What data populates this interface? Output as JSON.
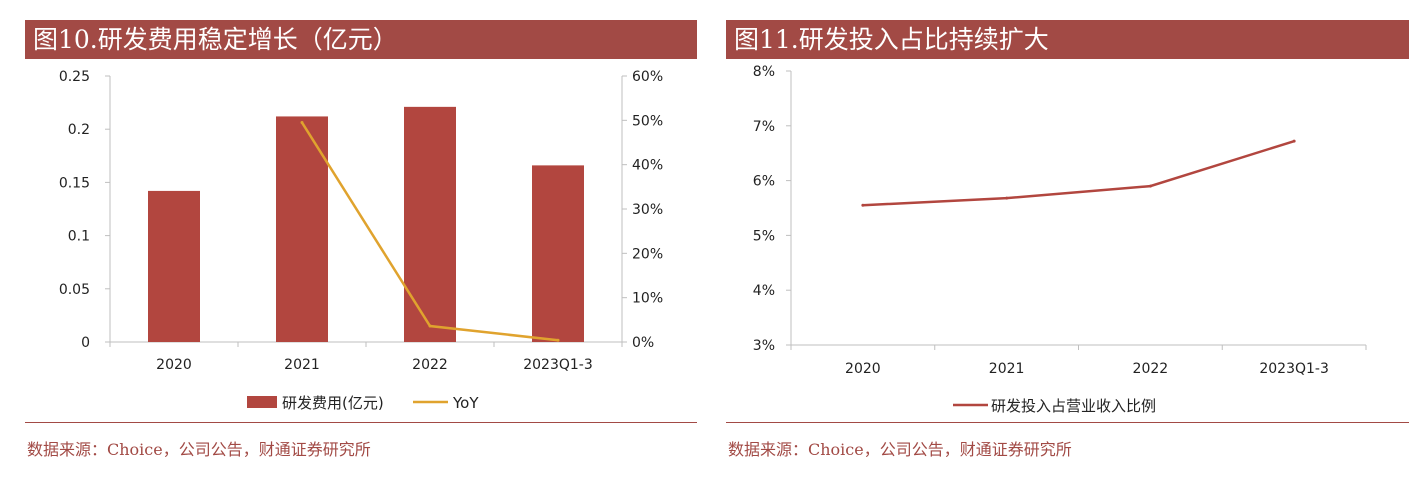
{
  "left": {
    "title": "图10.研发费用稳定增长（亿元）",
    "source": "数据来源：Choice，公司公告，财通证券研究所",
    "legend": {
      "bar": "研发费用(亿元)",
      "line": "YoY"
    }
  },
  "right": {
    "title": "图11.研发投入占比持续扩大",
    "source": "数据来源：Choice，公司公告，财通证券研究所",
    "legend": {
      "line": "研发投入占营业收入比例"
    }
  },
  "chart_data": [
    {
      "type": "bar",
      "title": "图10.研发费用稳定增长（亿元）",
      "categories": [
        "2020",
        "2021",
        "2022",
        "2023Q1-3"
      ],
      "series": [
        {
          "name": "研发费用(亿元)",
          "type": "bar",
          "axis": "left",
          "color": "#b2463f",
          "values": [
            0.142,
            0.212,
            0.221,
            0.166
          ]
        },
        {
          "name": "YoY",
          "type": "line",
          "axis": "right",
          "color": "#e0a32e",
          "values": [
            null,
            49.5,
            3.6,
            0.4
          ]
        }
      ],
      "y_left": {
        "ylim": [
          0,
          0.25
        ],
        "ticks": [
          0.25,
          0.2,
          0.15,
          0.1,
          0.05,
          0
        ],
        "tick_labels": [
          "0.25",
          "0.2",
          "0.15",
          "0.1",
          "0.05",
          "0"
        ]
      },
      "y_right": {
        "ylim": [
          0,
          60
        ],
        "ticks": [
          60,
          50,
          40,
          30,
          20,
          10,
          0
        ],
        "tick_labels": [
          "60%",
          "50%",
          "40%",
          "30%",
          "20%",
          "10%",
          "0%"
        ]
      },
      "grid": false,
      "legend": "bottom"
    },
    {
      "type": "line",
      "title": "图11.研发投入占比持续扩大",
      "categories": [
        "2020",
        "2021",
        "2022",
        "2023Q1-3"
      ],
      "series": [
        {
          "name": "研发投入占营业收入比例",
          "color": "#b2463f",
          "values": [
            5.55,
            5.68,
            5.9,
            6.72
          ]
        }
      ],
      "y": {
        "ylim": [
          3,
          8
        ],
        "ticks": [
          8,
          7,
          6,
          5,
          4,
          3
        ],
        "tick_labels": [
          "8%",
          "7%",
          "6%",
          "5%",
          "4%",
          "3%"
        ]
      },
      "grid": false,
      "legend": "bottom"
    }
  ]
}
